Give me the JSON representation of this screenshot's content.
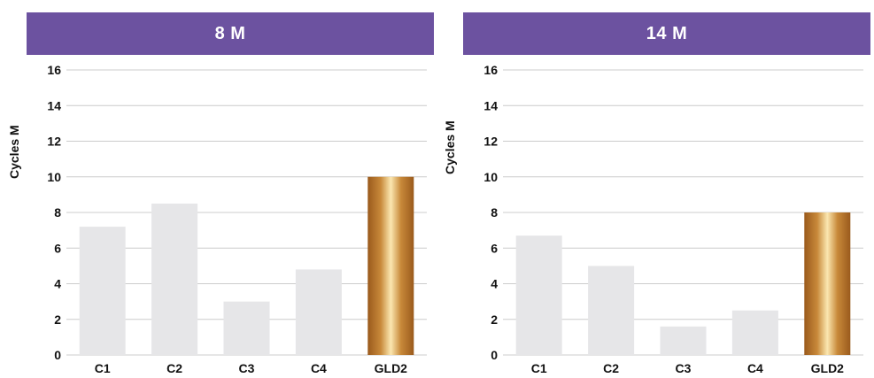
{
  "colors": {
    "header": "#6c52a0",
    "bar": "#e6e6e8",
    "highlight_dark": "#9a5a1c",
    "highlight_light": "#fbe7b0",
    "grid": "#cccccc"
  },
  "chart_data": [
    {
      "type": "bar",
      "title": "8 M",
      "ylabel": "Cycles M",
      "ylim": [
        0,
        16
      ],
      "yticks": [
        0,
        2,
        4,
        6,
        8,
        10,
        12,
        14,
        16
      ],
      "grid": true,
      "categories": [
        "C1",
        "C2",
        "C3",
        "C4",
        "GLD2"
      ],
      "values": [
        7.2,
        8.5,
        3.0,
        4.8,
        10.0
      ],
      "highlight": "GLD2"
    },
    {
      "type": "bar",
      "title": "14 M",
      "ylabel": "Cycles M",
      "ylim": [
        0,
        16
      ],
      "yticks": [
        0,
        2,
        4,
        6,
        8,
        10,
        12,
        14,
        16
      ],
      "grid": true,
      "categories": [
        "C1",
        "C2",
        "C3",
        "C4",
        "GLD2"
      ],
      "values": [
        6.7,
        5.0,
        1.6,
        2.5,
        8.0
      ],
      "highlight": "GLD2"
    }
  ]
}
